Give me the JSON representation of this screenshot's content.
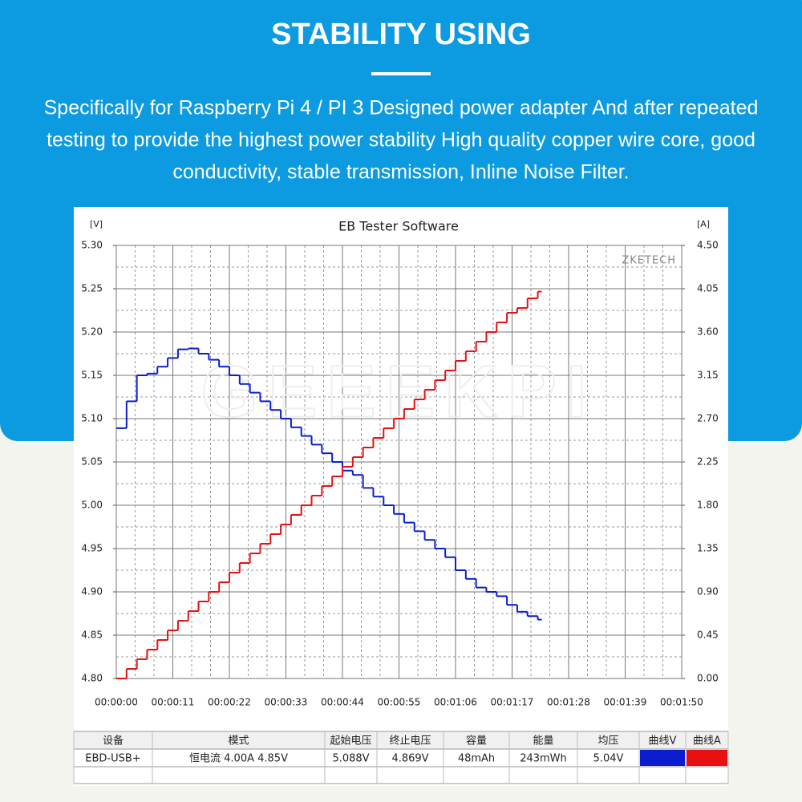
{
  "header": {
    "title": "STABILITY USING",
    "paragraph": [
      "Specifically for Raspberry Pi 4 / PI 3 Designed power adapter And after repeated",
      "testing to provide the highest power stability High quality copper wire core, good",
      "conductivity, stable transmission, Inline Noise Filter."
    ]
  },
  "chart_data": {
    "type": "step",
    "title": "EB Tester Software",
    "watermark": "GEEEKPI",
    "brand": "ZKETECH",
    "ylabel": "[V]",
    "y2label": "[A]",
    "grid": true,
    "x": [
      0,
      2,
      4,
      6,
      8,
      10,
      12,
      14,
      16,
      18,
      20,
      22,
      24,
      26,
      28,
      30,
      32,
      34,
      36,
      38,
      40,
      42,
      44,
      46,
      48,
      50,
      52,
      54,
      56,
      58,
      60,
      62,
      64,
      66,
      68,
      70,
      72,
      74,
      76,
      78,
      80,
      82
    ],
    "xlim": [
      0,
      110
    ],
    "xticks": [
      {
        "value": 0,
        "label": "00:00:00"
      },
      {
        "value": 11,
        "label": "00:00:11"
      },
      {
        "value": 22,
        "label": "00:00:22"
      },
      {
        "value": 33,
        "label": "00:00:33"
      },
      {
        "value": 44,
        "label": "00:00:44"
      },
      {
        "value": 55,
        "label": "00:00:55"
      },
      {
        "value": 66,
        "label": "00:01:06"
      },
      {
        "value": 77,
        "label": "00:01:17"
      },
      {
        "value": 88,
        "label": "00:01:28"
      },
      {
        "value": 99,
        "label": "00:01:39"
      },
      {
        "value": 110,
        "label": "00:01:50"
      }
    ],
    "ylim": [
      4.8,
      5.3
    ],
    "yticks": [
      {
        "value": 4.8,
        "label": "4.80"
      },
      4.85,
      {
        "value": 4.9,
        "label": "4.90"
      },
      4.95,
      {
        "value": 5.0,
        "label": "5.00"
      },
      5.05,
      {
        "value": 5.1,
        "label": "5.10"
      },
      5.15,
      {
        "value": 5.2,
        "label": "5.20"
      },
      5.25,
      {
        "value": 5.3,
        "label": "5.30"
      }
    ],
    "y2lim": [
      0,
      4.5
    ],
    "y2ticks": [
      {
        "value": 0,
        "label": "0.00"
      },
      0.45,
      {
        "value": 0.9,
        "label": "0.90"
      },
      1.35,
      {
        "value": 1.8,
        "label": "1.80"
      },
      2.25,
      {
        "value": 2.7,
        "label": "2.70"
      },
      3.15,
      {
        "value": 3.6,
        "label": "3.60"
      },
      4.05,
      {
        "value": 4.5,
        "label": "4.50"
      }
    ],
    "series": [
      {
        "color": "#0a1ed0",
        "values": [
          5.089,
          5.12,
          5.15,
          5.152,
          5.16,
          5.17,
          5.18,
          5.181,
          5.175,
          5.168,
          5.16,
          5.15,
          5.14,
          5.13,
          5.12,
          5.11,
          5.1,
          5.09,
          5.08,
          5.07,
          5.06,
          5.05,
          5.04,
          5.035,
          5.02,
          5.01,
          5.0,
          4.99,
          4.98,
          4.97,
          4.96,
          4.95,
          4.94,
          4.925,
          4.915,
          4.905,
          4.9,
          4.895,
          4.885,
          4.877,
          4.872,
          4.868
        ]
      },
      {
        "color": "#e81010",
        "axis": "y2",
        "values": [
          0,
          0.1,
          0.2,
          0.3,
          0.4,
          0.5,
          0.6,
          0.7,
          0.8,
          0.9,
          1.0,
          1.1,
          1.2,
          1.3,
          1.4,
          1.5,
          1.6,
          1.7,
          1.8,
          1.9,
          2.0,
          2.1,
          2.2,
          2.3,
          2.4,
          2.5,
          2.6,
          2.7,
          2.8,
          2.9,
          3.0,
          3.1,
          3.2,
          3.3,
          3.4,
          3.5,
          3.6,
          3.7,
          3.8,
          3.85,
          3.95,
          4.02
        ]
      }
    ]
  },
  "table": {
    "headers": [
      "设备",
      "模式",
      "起始电压",
      "终止电压",
      "容量",
      "能量",
      "均压",
      "曲线V",
      "曲线A"
    ],
    "rows": [
      [
        "EBD-USB+",
        "恒电流  4.00A  4.85V",
        "5.088V",
        "4.869V",
        "48mAh",
        "243mWh",
        "5.04V"
      ]
    ]
  }
}
